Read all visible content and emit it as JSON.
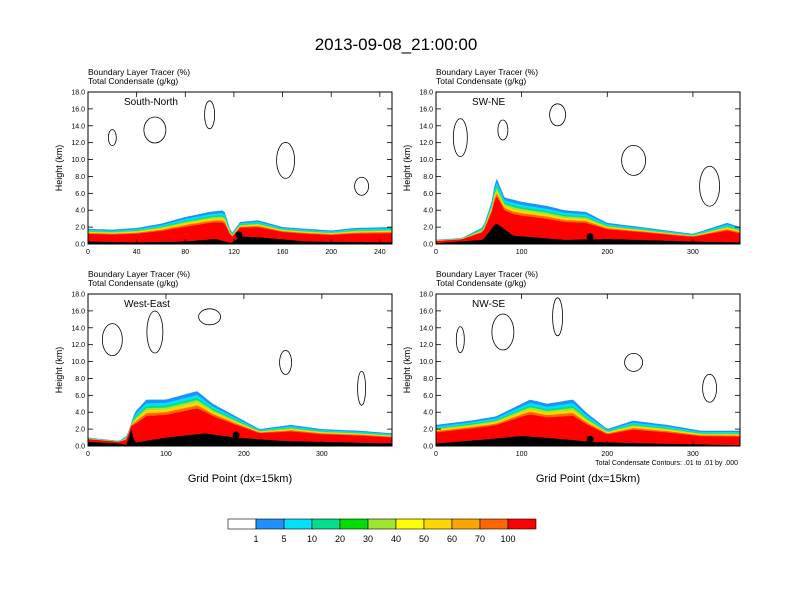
{
  "title": "2013-09-08_21:00:00",
  "panel_caption_line1": "Boundary Layer Tracer   (%)",
  "panel_caption_line2": "Total Condensate   (g/kg)",
  "ylabel": "Height (km)",
  "xlabel": "Grid Point (dx=15km)",
  "contour_note": "Total Condensate Contours: .01 to .01 by .000",
  "colorbar": {
    "labels": [
      "1",
      "5",
      "10",
      "20",
      "30",
      "40",
      "50",
      "60",
      "70",
      "100"
    ],
    "colors": [
      "#ffffff",
      "#1e90ff",
      "#00bfff",
      "#00ffff",
      "#00e08a",
      "#00e000",
      "#a0e62c",
      "#ffff00",
      "#ffd700",
      "#ffa500",
      "#ff6600",
      "#ff0000"
    ]
  },
  "chart_data": [
    {
      "type": "contour-cross-section",
      "label": "South-North",
      "xticks": [
        0,
        40,
        80,
        120,
        160,
        200,
        240
      ],
      "xlim": [
        0,
        250
      ],
      "yticks": [
        "0.0",
        "2.0",
        "4.0",
        "6.0",
        "8.0",
        "10.0",
        "12.0",
        "14.0",
        "16.0",
        "18.0"
      ],
      "ylim": [
        0,
        18
      ],
      "pbl_top_km": [
        [
          0,
          1.8
        ],
        [
          20,
          1.7
        ],
        [
          40,
          1.9
        ],
        [
          60,
          2.4
        ],
        [
          80,
          3.2
        ],
        [
          100,
          3.8
        ],
        [
          112,
          4.0
        ],
        [
          118,
          1.2
        ],
        [
          125,
          2.6
        ],
        [
          140,
          2.8
        ],
        [
          160,
          2.0
        ],
        [
          180,
          1.8
        ],
        [
          200,
          1.6
        ],
        [
          220,
          1.9
        ],
        [
          250,
          2.0
        ]
      ],
      "terrain_km": [
        [
          0,
          0.3
        ],
        [
          40,
          0.2
        ],
        [
          80,
          0.3
        ],
        [
          105,
          0.6
        ],
        [
          118,
          0.1
        ],
        [
          125,
          0.9
        ],
        [
          140,
          0.8
        ],
        [
          180,
          0.3
        ],
        [
          250,
          0.2
        ]
      ],
      "marker_x": 124
    },
    {
      "type": "contour-cross-section",
      "label": "SW-NE",
      "xticks": [
        0,
        100,
        200,
        300
      ],
      "xlim": [
        0,
        355
      ],
      "yticks": [
        "0.0",
        "2.0",
        "4.0",
        "6.0",
        "8.0",
        "10.0",
        "12.0",
        "14.0",
        "16.0",
        "18.0"
      ],
      "ylim": [
        0,
        18
      ],
      "pbl_top_km": [
        [
          0,
          0.5
        ],
        [
          30,
          0.7
        ],
        [
          55,
          2.0
        ],
        [
          65,
          5.0
        ],
        [
          70,
          8.0
        ],
        [
          80,
          5.5
        ],
        [
          100,
          5.0
        ],
        [
          130,
          4.5
        ],
        [
          150,
          4.0
        ],
        [
          175,
          3.8
        ],
        [
          200,
          2.5
        ],
        [
          240,
          2.0
        ],
        [
          300,
          1.2
        ],
        [
          340,
          2.5
        ],
        [
          355,
          2.0
        ]
      ],
      "terrain_km": [
        [
          0,
          0.1
        ],
        [
          55,
          0.5
        ],
        [
          70,
          2.5
        ],
        [
          90,
          1.0
        ],
        [
          150,
          0.5
        ],
        [
          200,
          0.6
        ],
        [
          300,
          0.3
        ],
        [
          355,
          0.2
        ]
      ],
      "marker_x": 180
    },
    {
      "type": "contour-cross-section",
      "label": "West-East",
      "xticks": [
        0,
        100,
        200,
        300
      ],
      "xlim": [
        0,
        390
      ],
      "yticks": [
        "0.0",
        "2.0",
        "4.0",
        "6.0",
        "8.0",
        "10.0",
        "12.0",
        "14.0",
        "16.0",
        "18.0"
      ],
      "ylim": [
        0,
        18
      ],
      "pbl_top_km": [
        [
          0,
          1.0
        ],
        [
          40,
          0.6
        ],
        [
          50,
          1.2
        ],
        [
          60,
          4.0
        ],
        [
          75,
          5.5
        ],
        [
          100,
          5.5
        ],
        [
          140,
          6.5
        ],
        [
          160,
          5.0
        ],
        [
          190,
          3.5
        ],
        [
          220,
          2.0
        ],
        [
          260,
          2.5
        ],
        [
          300,
          2.0
        ],
        [
          350,
          1.8
        ],
        [
          390,
          1.5
        ]
      ],
      "terrain_km": [
        [
          0,
          0.5
        ],
        [
          40,
          0.3
        ],
        [
          50,
          0.1
        ],
        [
          55,
          2.0
        ],
        [
          60,
          0.4
        ],
        [
          100,
          1.0
        ],
        [
          150,
          1.5
        ],
        [
          190,
          1.0
        ],
        [
          250,
          0.6
        ],
        [
          390,
          0.3
        ]
      ],
      "marker_x": 190
    },
    {
      "type": "contour-cross-section",
      "label": "NW-SE",
      "xticks": [
        0,
        100,
        200,
        300
      ],
      "xlim": [
        0,
        355
      ],
      "yticks": [
        "0.0",
        "2.0",
        "4.0",
        "6.0",
        "8.0",
        "10.0",
        "12.0",
        "14.0",
        "16.0",
        "18.0"
      ],
      "ylim": [
        0,
        18
      ],
      "pbl_top_km": [
        [
          0,
          2.5
        ],
        [
          40,
          3.0
        ],
        [
          70,
          3.5
        ],
        [
          90,
          4.5
        ],
        [
          110,
          5.5
        ],
        [
          130,
          5.0
        ],
        [
          160,
          5.5
        ],
        [
          175,
          4.0
        ],
        [
          200,
          2.0
        ],
        [
          230,
          3.0
        ],
        [
          270,
          2.5
        ],
        [
          310,
          1.8
        ],
        [
          355,
          1.8
        ]
      ],
      "terrain_km": [
        [
          0,
          0.3
        ],
        [
          60,
          0.8
        ],
        [
          100,
          1.2
        ],
        [
          150,
          0.8
        ],
        [
          180,
          0.5
        ],
        [
          250,
          0.3
        ],
        [
          355,
          0.1
        ]
      ],
      "marker_x": 180
    }
  ]
}
